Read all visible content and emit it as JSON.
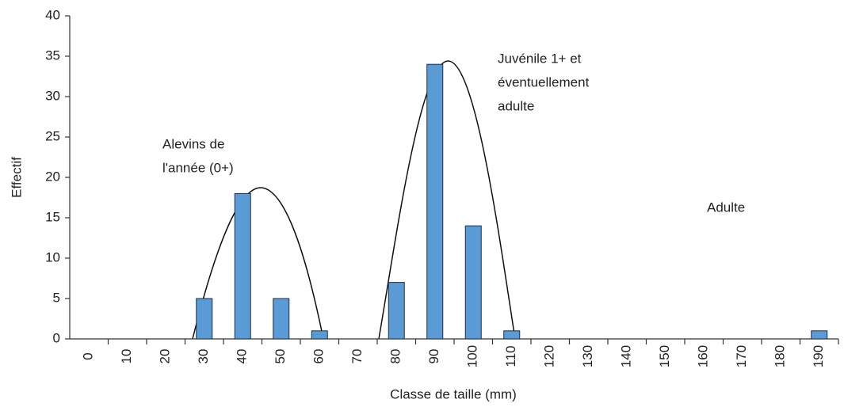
{
  "chart_data": {
    "type": "bar",
    "ylabel": "Effectif",
    "xlabel": "Classe de taille (mm)",
    "categories": [
      "0",
      "10",
      "20",
      "30",
      "40",
      "50",
      "60",
      "70",
      "80",
      "90",
      "100",
      "110",
      "120",
      "130",
      "140",
      "150",
      "160",
      "170",
      "180",
      "190"
    ],
    "values": [
      0,
      0,
      0,
      5,
      18,
      5,
      1,
      0,
      7,
      34,
      14,
      1,
      0,
      0,
      0,
      0,
      0,
      0,
      0,
      1
    ],
    "color": "#5b9bd5",
    "ylim": [
      0,
      40
    ],
    "yticks": [
      0,
      5,
      10,
      15,
      20,
      25,
      30,
      35,
      40
    ],
    "grid": false,
    "annotations": [
      [
        "Alevins de",
        "l'année (0+)"
      ],
      [
        "Juvénile 1+ et",
        "éventuellement",
        "adulte"
      ],
      [
        "Adulte"
      ]
    ]
  }
}
